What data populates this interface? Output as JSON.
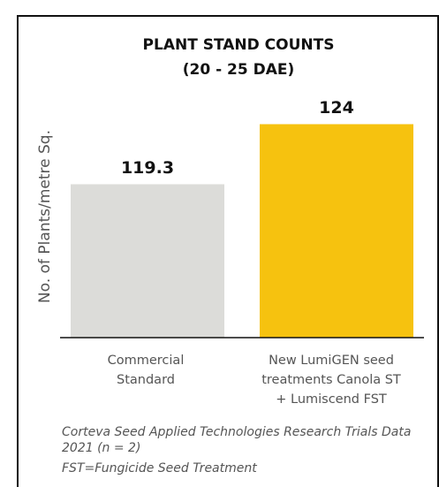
{
  "chart_data": {
    "type": "bar",
    "title": "PLANT STAND COUNTS (20 - 25 DAE)",
    "y_label": "No. of Plants/metre Sq.",
    "categories": [
      "Commercial Standard",
      "New LumiGEN seed treatments Canola ST + Lumiscend FST"
    ],
    "values": [
      119.3,
      124
    ],
    "colors": [
      "#dcdcd9",
      "#f6c20f"
    ],
    "ylim": [
      107.3,
      126.8
    ],
    "notes": [
      "Corteva Seed Applied Technologies Research Trials Data 2021 (n = 2)",
      "FST=Fungicide Seed Treatment"
    ]
  }
}
